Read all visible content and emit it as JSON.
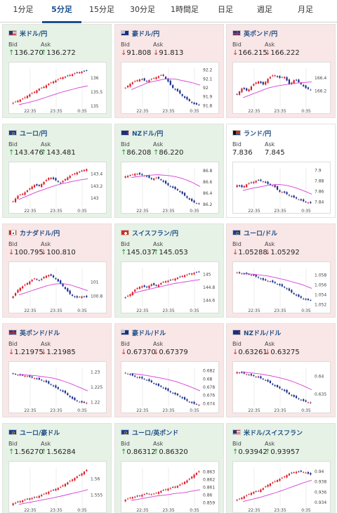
{
  "tabs": [
    {
      "label": "1分足",
      "active": false
    },
    {
      "label": "5分足",
      "active": true
    },
    {
      "label": "15分足",
      "active": false
    },
    {
      "label": "30分足",
      "active": false
    },
    {
      "label": "1時間足",
      "active": false
    },
    {
      "label": "日足",
      "active": false
    },
    {
      "label": "週足",
      "active": false
    },
    {
      "label": "月足",
      "active": false
    }
  ],
  "colors": {
    "up": "#1a9c3a",
    "down": "#d8262b",
    "card_up": "#e6f2e6",
    "card_down": "#f9e6e6",
    "card_flat": "#ffffff",
    "candle_up": "#e01b24",
    "candle_down": "#1c2f8c",
    "ma": "#d63ed6",
    "title": "#1f4f86"
  },
  "labels": {
    "bid": "Bid",
    "ask": "Ask"
  },
  "cards": [
    {
      "pair": "米ドル/円",
      "flag": "us",
      "direction": "up",
      "bid": "136.270",
      "ask": "136.272"
    },
    {
      "pair": "豪ドル/円",
      "flag": "au",
      "direction": "down",
      "bid": "91.808",
      "ask": "91.813"
    },
    {
      "pair": "英ポンド/円",
      "flag": "gb",
      "direction": "down",
      "bid": "166.215",
      "ask": "166.222"
    },
    {
      "pair": "ユーロ/円",
      "flag": "eu",
      "direction": "up",
      "bid": "143.476",
      "ask": "143.481"
    },
    {
      "pair": "NZドル/円",
      "flag": "nz",
      "direction": "up",
      "bid": "86.208",
      "ask": "86.220"
    },
    {
      "pair": "ランド/円",
      "flag": "za",
      "direction": "flat",
      "bid": "7.836",
      "ask": "7.845"
    },
    {
      "pair": "カナダドル/円",
      "flag": "ca",
      "direction": "down",
      "bid": "100.795",
      "ask": "100.810"
    },
    {
      "pair": "スイスフラン/円",
      "flag": "ch",
      "direction": "up",
      "bid": "145.037",
      "ask": "145.053"
    },
    {
      "pair": "ユーロ/ドル",
      "flag": "eu",
      "direction": "down",
      "bid": "1.05288",
      "ask": "1.05292"
    },
    {
      "pair": "英ポンド/ドル",
      "flag": "gb",
      "direction": "down",
      "bid": "1.21975",
      "ask": "1.21985"
    },
    {
      "pair": "豪ドル/ドル",
      "flag": "au",
      "direction": "down",
      "bid": "0.67370",
      "ask": "0.67379"
    },
    {
      "pair": "NZドル/ドル",
      "flag": "nz",
      "direction": "down",
      "bid": "0.63261",
      "ask": "0.63275"
    },
    {
      "pair": "ユーロ/豪ドル",
      "flag": "eu",
      "direction": "up",
      "bid": "1.56270",
      "ask": "1.56284"
    },
    {
      "pair": "ユーロ/英ポンド",
      "flag": "eu",
      "direction": "up",
      "bid": "0.86312",
      "ask": "0.86320"
    },
    {
      "pair": "米ドル/スイスフラン",
      "flag": "us",
      "direction": "up",
      "bid": "0.93942",
      "ask": "0.93957"
    }
  ],
  "chart_data": [
    {
      "type": "candlestick",
      "x_ticks": [
        "22:35",
        "23:35",
        "0:35"
      ],
      "y_ticks": [
        "136",
        "135.5",
        "135"
      ],
      "ylim": [
        134.95,
        136.35
      ],
      "path": [
        135.12,
        135.2,
        135.28,
        135.4,
        135.5,
        135.62,
        135.7,
        135.82,
        135.9,
        136.0,
        136.05,
        136.12,
        136.18,
        136.22,
        136.27
      ],
      "ma": [
        135.05,
        135.12,
        135.2,
        135.3,
        135.4,
        135.5,
        135.58,
        135.66,
        135.72
      ]
    },
    {
      "type": "candlestick",
      "x_ticks": [
        "22:35",
        "23:35",
        "0:35"
      ],
      "y_ticks": [
        "92.2",
        "92.1",
        "92",
        "91.9",
        "91.8"
      ],
      "ylim": [
        91.78,
        92.22
      ],
      "path": [
        92.0,
        92.05,
        92.08,
        92.1,
        92.07,
        92.1,
        92.12,
        92.15,
        92.08,
        92.0,
        91.96,
        91.9,
        91.86,
        91.82,
        91.81
      ],
      "ma": [
        91.98,
        92.02,
        92.06,
        92.08,
        92.1,
        92.1,
        92.08,
        92.06,
        92.03
      ]
    },
    {
      "type": "candlestick",
      "x_ticks": [
        "22:35",
        "23:35",
        "0:35"
      ],
      "y_ticks": [
        "166.4",
        "166.2"
      ],
      "ylim": [
        165.95,
        166.55
      ],
      "path": [
        166.15,
        166.25,
        166.2,
        166.3,
        166.35,
        166.3,
        166.4,
        166.45,
        166.4,
        166.42,
        166.3,
        166.38,
        166.32,
        166.25,
        166.22
      ],
      "ma": [
        166.1,
        166.15,
        166.2,
        166.25,
        166.28,
        166.3,
        166.32,
        166.33,
        166.34
      ]
    },
    {
      "type": "candlestick",
      "x_ticks": [
        "22:35",
        "23:35",
        "0:35"
      ],
      "y_ticks": [
        "143.4",
        "143.2",
        "143"
      ],
      "ylim": [
        142.85,
        143.5
      ],
      "path": [
        142.95,
        143.05,
        143.08,
        143.15,
        143.22,
        143.2,
        143.28,
        143.35,
        143.3,
        143.25,
        143.32,
        143.38,
        143.42,
        143.45,
        143.48
      ],
      "ma": [
        142.98,
        143.04,
        143.1,
        143.15,
        143.2,
        143.24,
        143.27,
        143.3,
        143.32
      ]
    },
    {
      "type": "candlestick",
      "x_ticks": [
        "22:35",
        "23:35",
        "0:35"
      ],
      "y_ticks": [
        "86.8",
        "86.6",
        "86.4",
        "86.2"
      ],
      "ylim": [
        86.15,
        86.85
      ],
      "path": [
        86.7,
        86.72,
        86.75,
        86.73,
        86.7,
        86.65,
        86.68,
        86.62,
        86.55,
        86.5,
        86.45,
        86.38,
        86.3,
        86.24,
        86.21
      ],
      "ma": [
        86.68,
        86.7,
        86.72,
        86.73,
        86.72,
        86.7,
        86.66,
        86.6,
        86.52
      ]
    },
    {
      "type": "candlestick",
      "x_ticks": [
        "22:35",
        "23:35",
        "0:35"
      ],
      "y_ticks": [
        "7.9",
        "7.88",
        "7.86",
        "7.84"
      ],
      "ylim": [
        7.83,
        7.905
      ],
      "path": [
        7.872,
        7.868,
        7.875,
        7.878,
        7.882,
        7.879,
        7.874,
        7.871,
        7.86,
        7.858,
        7.852,
        7.848,
        7.844,
        7.84,
        7.838
      ],
      "ma": [
        7.862,
        7.866,
        7.869,
        7.872,
        7.874,
        7.872,
        7.868,
        7.862,
        7.855
      ]
    },
    {
      "type": "candlestick",
      "x_ticks": [
        "22:35",
        "23:35",
        "0:35"
      ],
      "y_ticks": [
        "101",
        "100.8"
      ],
      "ylim": [
        100.65,
        101.2
      ],
      "path": [
        100.8,
        100.9,
        100.95,
        101.0,
        101.05,
        101.02,
        101.08,
        101.1,
        101.05,
        100.98,
        100.9,
        100.82,
        100.78,
        100.8,
        100.79
      ],
      "ma": [
        100.82,
        100.86,
        100.9,
        100.94,
        100.97,
        100.98,
        100.96,
        100.92,
        100.88
      ]
    },
    {
      "type": "candlestick",
      "x_ticks": [
        "22:35",
        "23:35",
        "0:35"
      ],
      "y_ticks": [
        "145",
        "144.8",
        "144.6"
      ],
      "ylim": [
        144.5,
        145.1
      ],
      "path": [
        144.65,
        144.7,
        144.78,
        144.82,
        144.8,
        144.85,
        144.82,
        144.88,
        144.9,
        144.92,
        144.95,
        144.98,
        145.0,
        145.02,
        145.04
      ],
      "ma": [
        144.7,
        144.74,
        144.77,
        144.8,
        144.83,
        144.86,
        144.88,
        144.9,
        144.92
      ]
    },
    {
      "type": "candlestick",
      "x_ticks": [
        "22:35",
        "23:35",
        "0:35"
      ],
      "y_ticks": [
        "1.058",
        "1.056",
        "1.054",
        "1.052"
      ],
      "ylim": [
        1.0515,
        1.0595
      ],
      "path": [
        1.0585,
        1.0583,
        1.0582,
        1.058,
        1.0575,
        1.057,
        1.0568,
        1.0565,
        1.056,
        1.0555,
        1.0548,
        1.054,
        1.0535,
        1.053,
        1.0529
      ],
      "ma": [
        1.0584,
        1.0582,
        1.058,
        1.0578,
        1.0574,
        1.057,
        1.0565,
        1.056,
        1.0553
      ]
    },
    {
      "type": "candlestick",
      "x_ticks": [
        "22:35",
        "23:35",
        "0:35"
      ],
      "y_ticks": [
        "1.23",
        "1.225",
        "1.22"
      ],
      "ylim": [
        1.2185,
        1.2315
      ],
      "path": [
        1.2295,
        1.229,
        1.2288,
        1.2285,
        1.228,
        1.2275,
        1.227,
        1.226,
        1.225,
        1.224,
        1.223,
        1.2215,
        1.2205,
        1.22,
        1.2198
      ],
      "ma": [
        1.2292,
        1.229,
        1.2288,
        1.2284,
        1.228,
        1.2272,
        1.2262,
        1.225,
        1.2238
      ]
    },
    {
      "type": "candlestick",
      "x_ticks": [
        "22:35",
        "23:35",
        "0:35"
      ],
      "y_ticks": [
        "0.682",
        "0.68",
        "0.678",
        "0.676",
        "0.674"
      ],
      "ylim": [
        0.6732,
        0.6828
      ],
      "path": [
        0.6815,
        0.681,
        0.6805,
        0.6802,
        0.6798,
        0.6792,
        0.6785,
        0.678,
        0.6772,
        0.6765,
        0.676,
        0.6752,
        0.6745,
        0.674,
        0.6737
      ],
      "ma": [
        0.6814,
        0.6811,
        0.6808,
        0.6804,
        0.68,
        0.6795,
        0.6788,
        0.678,
        0.6771
      ]
    },
    {
      "type": "candlestick",
      "x_ticks": [
        "22:35",
        "23:35",
        "0:35"
      ],
      "y_ticks": [
        "0.64",
        "0.635"
      ],
      "ylim": [
        0.6315,
        0.6425
      ],
      "path": [
        0.6412,
        0.641,
        0.6405,
        0.6402,
        0.6398,
        0.6392,
        0.6385,
        0.6375,
        0.6368,
        0.636,
        0.635,
        0.6342,
        0.6335,
        0.633,
        0.6326
      ],
      "ma": [
        0.6412,
        0.641,
        0.6407,
        0.6403,
        0.6398,
        0.6392,
        0.6384,
        0.6374,
        0.6363
      ]
    },
    {
      "type": "candlestick",
      "x_ticks": [
        "22:35",
        "23:35",
        "0:35"
      ],
      "y_ticks": [
        "1.56",
        "1.555"
      ],
      "ylim": [
        1.5515,
        1.5635
      ],
      "path": [
        1.5525,
        1.553,
        1.5535,
        1.554,
        1.5542,
        1.5548,
        1.5555,
        1.5562,
        1.5568,
        1.5575,
        1.5585,
        1.5595,
        1.5605,
        1.5615,
        1.5627
      ],
      "ma": [
        1.5522,
        1.5527,
        1.5532,
        1.5537,
        1.5542,
        1.5548,
        1.5554,
        1.556,
        1.5567
      ]
    },
    {
      "type": "candlestick",
      "x_ticks": [
        "22:35",
        "23:35",
        "0:35"
      ],
      "y_ticks": [
        "0.863",
        "0.862",
        "0.861",
        "0.86",
        "0.859"
      ],
      "ylim": [
        0.8585,
        0.8636
      ],
      "path": [
        0.8594,
        0.8597,
        0.8598,
        0.86,
        0.8602,
        0.8601,
        0.8603,
        0.8606,
        0.8608,
        0.861,
        0.8612,
        0.8616,
        0.862,
        0.8626,
        0.8631
      ],
      "ma": [
        0.8593,
        0.8595,
        0.8597,
        0.8599,
        0.86,
        0.8602,
        0.8603,
        0.8605,
        0.8607
      ]
    },
    {
      "type": "candlestick",
      "x_ticks": [
        "22:35",
        "23:35",
        "0:35"
      ],
      "y_ticks": [
        "0.94",
        "0.938",
        "0.936",
        "0.934"
      ],
      "ylim": [
        0.9332,
        0.9408
      ],
      "path": [
        0.9345,
        0.935,
        0.9355,
        0.936,
        0.9362,
        0.9368,
        0.9375,
        0.938,
        0.9385,
        0.939,
        0.9396,
        0.9399,
        0.94,
        0.9398,
        0.9394
      ],
      "ma": [
        0.9342,
        0.9346,
        0.935,
        0.9355,
        0.936,
        0.9366,
        0.9372,
        0.9378,
        0.9383
      ]
    }
  ]
}
